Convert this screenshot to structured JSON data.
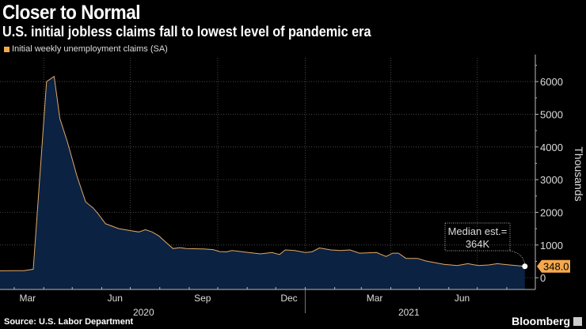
{
  "header": {
    "title": "Closer to Normal",
    "subtitle": "U.S. initial jobless claims fall to lowest level of pandemic era"
  },
  "footer": {
    "source": "Source: U.S. Labor Department",
    "brand": "Bloomberg"
  },
  "chart_data": {
    "type": "area",
    "title": "Closer to Normal",
    "subtitle": "U.S. initial jobless claims fall to lowest level of pandemic era",
    "legend": [
      {
        "name": "Initial weekly unemployment claims (SA)",
        "color": "#f5a94e"
      }
    ],
    "legend_placement": "top-left",
    "ylabel": "Thousands",
    "ylim": [
      -360,
      6730
    ],
    "yticks": [
      0,
      1000,
      2000,
      3000,
      4000,
      5000,
      6000
    ],
    "grid": true,
    "xlim": [
      "2020-02-15",
      "2021-08-31"
    ],
    "xticks": [
      {
        "label": "Mar",
        "date": "2020-03-15"
      },
      {
        "label": "Jun",
        "date": "2020-06-15"
      },
      {
        "label": "Sep",
        "date": "2020-09-15"
      },
      {
        "label": "Dec",
        "date": "2020-12-15"
      },
      {
        "label": "Mar",
        "date": "2021-03-15"
      },
      {
        "label": "Jun",
        "date": "2021-06-15"
      }
    ],
    "year_labels": [
      {
        "label": "2020",
        "date": "2020-07-15"
      },
      {
        "label": "2021",
        "date": "2021-04-20"
      }
    ],
    "series": [
      {
        "name": "Initial weekly unemployment claims (SA)",
        "points": [
          [
            "2020-02-15",
            210
          ],
          [
            "2020-02-29",
            215
          ],
          [
            "2020-03-11",
            215
          ],
          [
            "2020-03-21",
            260
          ],
          [
            "2020-04-04",
            6000
          ],
          [
            "2020-04-12",
            6160
          ],
          [
            "2020-04-18",
            4870
          ],
          [
            "2020-04-26",
            4140
          ],
          [
            "2020-05-06",
            3100
          ],
          [
            "2020-05-15",
            2320
          ],
          [
            "2020-05-23",
            2130
          ],
          [
            "2020-05-28",
            1960
          ],
          [
            "2020-06-05",
            1650
          ],
          [
            "2020-06-19",
            1500
          ],
          [
            "2020-07-03",
            1430
          ],
          [
            "2020-07-10",
            1400
          ],
          [
            "2020-07-17",
            1470
          ],
          [
            "2020-07-24",
            1400
          ],
          [
            "2020-07-31",
            1280
          ],
          [
            "2020-08-08",
            1070
          ],
          [
            "2020-08-15",
            890
          ],
          [
            "2020-08-22",
            920
          ],
          [
            "2020-08-29",
            890
          ],
          [
            "2020-09-16",
            880
          ],
          [
            "2020-09-26",
            860
          ],
          [
            "2020-10-03",
            800
          ],
          [
            "2020-10-10",
            790
          ],
          [
            "2020-10-16",
            830
          ],
          [
            "2020-10-28",
            790
          ],
          [
            "2020-11-15",
            730
          ],
          [
            "2020-11-27",
            770
          ],
          [
            "2020-12-05",
            710
          ],
          [
            "2020-12-11",
            850
          ],
          [
            "2020-12-21",
            830
          ],
          [
            "2021-01-01",
            770
          ],
          [
            "2021-01-08",
            790
          ],
          [
            "2021-01-16",
            910
          ],
          [
            "2021-01-28",
            850
          ],
          [
            "2021-02-07",
            830
          ],
          [
            "2021-02-17",
            850
          ],
          [
            "2021-02-27",
            750
          ],
          [
            "2021-03-17",
            770
          ],
          [
            "2021-03-27",
            650
          ],
          [
            "2021-04-03",
            750
          ],
          [
            "2021-04-09",
            750
          ],
          [
            "2021-04-17",
            590
          ],
          [
            "2021-04-29",
            590
          ],
          [
            "2021-05-08",
            510
          ],
          [
            "2021-05-27",
            410
          ],
          [
            "2021-06-10",
            370
          ],
          [
            "2021-06-21",
            430
          ],
          [
            "2021-07-02",
            370
          ],
          [
            "2021-07-13",
            390
          ],
          [
            "2021-07-22",
            430
          ],
          [
            "2021-08-04",
            390
          ],
          [
            "2021-08-20",
            348
          ]
        ]
      }
    ],
    "last_value_label": "348.0",
    "annotation": {
      "line1": "Median est.=",
      "line2": "364K"
    }
  }
}
